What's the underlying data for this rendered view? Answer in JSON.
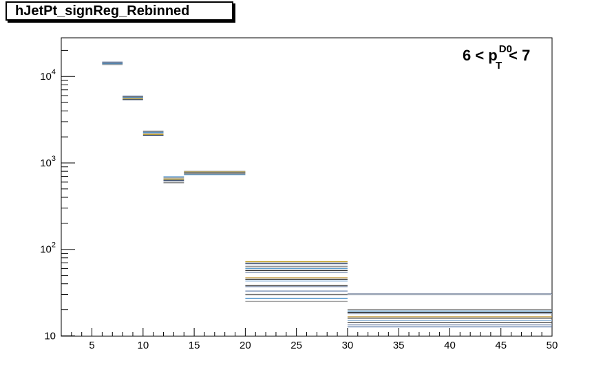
{
  "chart_data": {
    "type": "step-histogram",
    "title": "hJetPt_signReg_Rebinned",
    "annotation": {
      "prefix": "6 < p",
      "sub": "T",
      "sup": "D0",
      "suffix": "< 7"
    },
    "xlim": [
      2,
      50
    ],
    "ylim": [
      9.9,
      28000
    ],
    "yscale": "log",
    "x_ticks": [
      5,
      10,
      15,
      20,
      25,
      30,
      35,
      40,
      45,
      50
    ],
    "x_tick_labels": [
      "5",
      "10",
      "15",
      "20",
      "25",
      "30",
      "35",
      "40",
      "45",
      "50"
    ],
    "y_ticks": [
      10,
      100,
      1000,
      10000
    ],
    "y_tick_labels": [
      {
        "base": "10",
        "exp": ""
      },
      {
        "base": "10",
        "exp": "2"
      },
      {
        "base": "10",
        "exp": "3"
      },
      {
        "base": "10",
        "exp": "4"
      }
    ],
    "bins": [
      {
        "x0": 6,
        "x1": 8,
        "values": [
          14700,
          14400,
          14200,
          14000,
          13700
        ]
      },
      {
        "x0": 8,
        "x1": 10,
        "values": [
          5900,
          5800,
          5700,
          5600,
          5500,
          5400
        ]
      },
      {
        "x0": 10,
        "x1": 12,
        "values": [
          2320,
          2260,
          2200,
          2140,
          2080
        ]
      },
      {
        "x0": 12,
        "x1": 14,
        "values": [
          690,
          670,
          650,
          630,
          610,
          590
        ]
      },
      {
        "x0": 14,
        "x1": 20,
        "values": [
          800,
          785,
          770,
          760,
          745,
          730
        ]
      },
      {
        "x0": 20,
        "x1": 30,
        "values": [
          72,
          69,
          66,
          63,
          60,
          57,
          54,
          47,
          45,
          43,
          38,
          37,
          33,
          30,
          27,
          25
        ]
      },
      {
        "x0": 30,
        "x1": 50,
        "values": [
          30.5,
          30,
          20,
          19.3,
          18.6,
          18,
          16.6,
          16,
          15,
          14.2,
          13.4,
          12.7
        ]
      }
    ],
    "series_colors": [
      "#8a9bb8",
      "#5b7aa8",
      "#6e6e6e",
      "#4a8fc9",
      "#a0a0a0",
      "#c8a832",
      "#2a3f66",
      "#b0b8c4",
      "#7c7c7c",
      "#5fa0d0",
      "#3a3a3a",
      "#99a8c0",
      "#caa24a",
      "#4d4d4d",
      "#8fb4d8",
      "#555555"
    ]
  }
}
